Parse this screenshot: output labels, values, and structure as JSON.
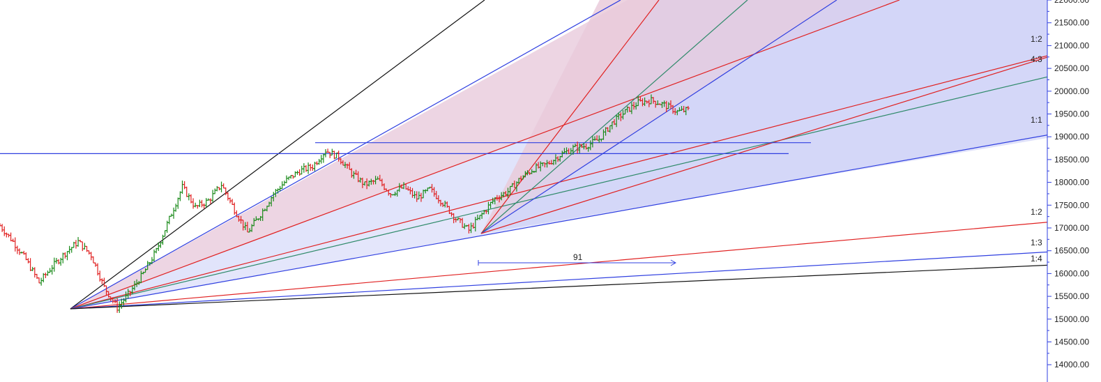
{
  "chart_data": {
    "type": "ohlc-with-gann-fans",
    "title": "",
    "xlabel": "",
    "ylabel": "",
    "ylim": [
      13800,
      22200
    ],
    "y_ticks": [
      "14000.00",
      "14500.00",
      "15000.00",
      "15500.00",
      "16000.00",
      "16500.00",
      "17000.00",
      "17500.00",
      "18000.00",
      "18500.00",
      "19000.00",
      "19500.00",
      "20000.00",
      "20500.00",
      "21000.00",
      "21500.00",
      "22000.00"
    ],
    "colors": {
      "up_bar": "#1a8a1a",
      "down_bar": "#e02020",
      "fan_blue": "#2f3fe0",
      "fan_red": "#e02020",
      "fan_green": "#2f8a6a",
      "fan_black": "#111111",
      "shade_blue": "#c9cdf7",
      "shade_red": "#f7c9cf"
    },
    "fan_labels": {
      "upper_1_2": "1:2",
      "upper_4_3": "4:3",
      "upper_1_1": "1:1",
      "lower_1_2": "1:2",
      "lower_1_3": "1:3",
      "lower_1_4": "1:4"
    },
    "measure": {
      "label": "91"
    },
    "horizontal_levels": [
      18630,
      18870
    ],
    "price_path": [
      [
        0,
        17050
      ],
      [
        1,
        16700
      ],
      [
        2,
        16300
      ],
      [
        3,
        15800
      ],
      [
        4,
        16150
      ],
      [
        5,
        16450
      ],
      [
        6,
        16700
      ],
      [
        7,
        16400
      ],
      [
        8,
        15700
      ],
      [
        9,
        15250
      ],
      [
        10,
        15600
      ],
      [
        11,
        16000
      ],
      [
        12,
        16500
      ],
      [
        13,
        17200
      ],
      [
        14,
        17900
      ],
      [
        15,
        17450
      ],
      [
        16,
        17600
      ],
      [
        17,
        17950
      ],
      [
        18,
        17400
      ],
      [
        19,
        16900
      ],
      [
        20,
        17300
      ],
      [
        21,
        17750
      ],
      [
        22,
        18050
      ],
      [
        23,
        18250
      ],
      [
        24,
        18350
      ],
      [
        25,
        18700
      ],
      [
        26,
        18550
      ],
      [
        27,
        18200
      ],
      [
        28,
        17950
      ],
      [
        29,
        18050
      ],
      [
        30,
        17750
      ],
      [
        31,
        17900
      ],
      [
        32,
        17650
      ],
      [
        33,
        17850
      ],
      [
        34,
        17550
      ],
      [
        35,
        17200
      ],
      [
        36,
        16950
      ],
      [
        37,
        17300
      ],
      [
        38,
        17650
      ],
      [
        39,
        17800
      ],
      [
        40,
        18100
      ],
      [
        41,
        18300
      ],
      [
        42,
        18400
      ],
      [
        43,
        18600
      ],
      [
        44,
        18750
      ],
      [
        45,
        18800
      ],
      [
        46,
        18950
      ],
      [
        47,
        19300
      ],
      [
        48,
        19550
      ],
      [
        49,
        19750
      ],
      [
        50,
        19800
      ],
      [
        51,
        19700
      ],
      [
        52,
        19550
      ],
      [
        53,
        19600
      ]
    ],
    "x_range": [
      0,
      53
    ]
  }
}
